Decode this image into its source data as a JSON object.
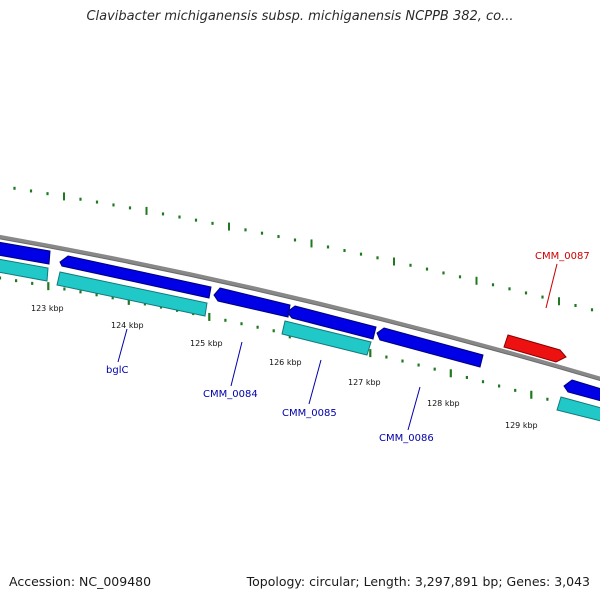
{
  "title": "Clavibacter michiganensis subsp. michiganensis NCPPB 382, co...",
  "footer": {
    "accession": "Accession: NC_009480",
    "topology": "Topology: circular; Length: 3,297,891 bp; Genes: 3,043"
  },
  "colors": {
    "backbone": "#808080",
    "ticks": "#1f7a1f",
    "forward_cds": "#0000e6",
    "reverse_cds": "#20c8c8",
    "highlight_cds": "#ee1111",
    "label_blue": "#0000aa",
    "label_red": "#cc0000"
  },
  "tick_labels": [
    "123 kbp",
    "124 kbp",
    "125 kbp",
    "126 kbp",
    "127 kbp",
    "128 kbp",
    "129 kbp"
  ],
  "gene_labels": [
    {
      "name": "bglC",
      "color": "blue"
    },
    {
      "name": "CMM_0084",
      "color": "blue"
    },
    {
      "name": "CMM_0085",
      "color": "blue"
    },
    {
      "name": "CMM_0086",
      "color": "blue"
    },
    {
      "name": "CMM_0087",
      "color": "red"
    }
  ]
}
